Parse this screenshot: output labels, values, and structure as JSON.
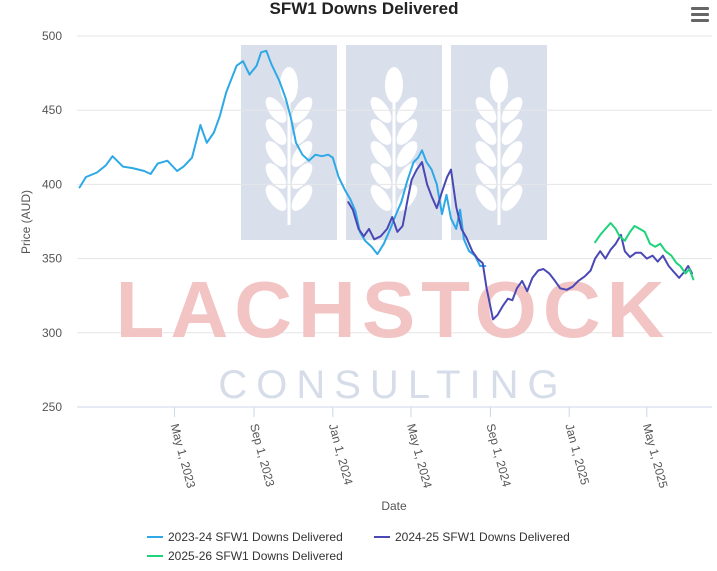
{
  "watermark": {
    "brand_word": "LACHSTOCK",
    "sub_word": "CONSULTING"
  },
  "menu_icon": "hamburger-menu-icon",
  "chart_data": {
    "type": "line",
    "title": "SFW1 Downs Delivered",
    "xlabel": "Date",
    "ylabel": "Price (AUD)",
    "ylim": [
      250,
      500
    ],
    "yticks": [
      "500",
      "450",
      "400",
      "350",
      "300",
      "250"
    ],
    "xlim": [
      "2022-12-01",
      "2025-08-10"
    ],
    "xticks": [
      {
        "date": "2023-05-01",
        "label": "May 1, 2023"
      },
      {
        "date": "2023-09-01",
        "label": "Sep 1, 2023"
      },
      {
        "date": "2024-01-01",
        "label": "Jan 1, 2024"
      },
      {
        "date": "2024-05-01",
        "label": "May 1, 2024"
      },
      {
        "date": "2024-09-01",
        "label": "Sep 1, 2024"
      },
      {
        "date": "2025-01-01",
        "label": "Jan 1, 2025"
      },
      {
        "date": "2025-05-01",
        "label": "May 1, 2025"
      }
    ],
    "grid": true,
    "legend_position": "bottom-center",
    "series": [
      {
        "name": "2023-24 SFW1 Downs Delivered",
        "color": "#2ea8e6",
        "points": [
          [
            "2022-12-05",
            398
          ],
          [
            "2022-12-15",
            405
          ],
          [
            "2023-01-01",
            408
          ],
          [
            "2023-01-15",
            413
          ],
          [
            "2023-01-25",
            419
          ],
          [
            "2023-02-10",
            412
          ],
          [
            "2023-02-25",
            411
          ],
          [
            "2023-03-15",
            409
          ],
          [
            "2023-03-25",
            407
          ],
          [
            "2023-04-05",
            414
          ],
          [
            "2023-04-20",
            416
          ],
          [
            "2023-05-05",
            409
          ],
          [
            "2023-05-15",
            412
          ],
          [
            "2023-05-28",
            418
          ],
          [
            "2023-06-10",
            440
          ],
          [
            "2023-06-20",
            428
          ],
          [
            "2023-07-01",
            435
          ],
          [
            "2023-07-10",
            446
          ],
          [
            "2023-07-20",
            462
          ],
          [
            "2023-07-28",
            471
          ],
          [
            "2023-08-05",
            480
          ],
          [
            "2023-08-15",
            483
          ],
          [
            "2023-08-25",
            474
          ],
          [
            "2023-09-05",
            480
          ],
          [
            "2023-09-12",
            489
          ],
          [
            "2023-09-20",
            490
          ],
          [
            "2023-09-28",
            481
          ],
          [
            "2023-10-10",
            470
          ],
          [
            "2023-10-20",
            458
          ],
          [
            "2023-10-28",
            445
          ],
          [
            "2023-11-05",
            428
          ],
          [
            "2023-11-15",
            420
          ],
          [
            "2023-11-25",
            416
          ],
          [
            "2023-12-05",
            420
          ],
          [
            "2023-12-15",
            419
          ],
          [
            "2023-12-25",
            420
          ],
          [
            "2024-01-01",
            418
          ],
          [
            "2024-01-10",
            405
          ],
          [
            "2024-01-20",
            396
          ],
          [
            "2024-01-28",
            390
          ],
          [
            "2024-02-05",
            382
          ],
          [
            "2024-02-12",
            368
          ],
          [
            "2024-02-20",
            362
          ],
          [
            "2024-03-01",
            358
          ],
          [
            "2024-03-10",
            353
          ],
          [
            "2024-03-20",
            360
          ],
          [
            "2024-03-30",
            370
          ],
          [
            "2024-04-08",
            380
          ],
          [
            "2024-04-16",
            388
          ],
          [
            "2024-04-25",
            402
          ],
          [
            "2024-05-05",
            415
          ],
          [
            "2024-05-12",
            418
          ],
          [
            "2024-05-18",
            423
          ],
          [
            "2024-05-25",
            415
          ],
          [
            "2024-06-02",
            410
          ],
          [
            "2024-06-10",
            400
          ],
          [
            "2024-06-18",
            380
          ],
          [
            "2024-06-25",
            393
          ],
          [
            "2024-07-02",
            377
          ],
          [
            "2024-07-10",
            370
          ],
          [
            "2024-07-16",
            383
          ],
          [
            "2024-07-22",
            363
          ],
          [
            "2024-07-30",
            355
          ],
          [
            "2024-08-08",
            352
          ],
          [
            "2024-08-16",
            345
          ],
          [
            "2024-08-24",
            345
          ]
        ]
      },
      {
        "name": "2024-25 SFW1 Downs Delivered",
        "color": "#4a48b5",
        "points": [
          [
            "2024-01-25",
            388
          ],
          [
            "2024-02-01",
            383
          ],
          [
            "2024-02-10",
            370
          ],
          [
            "2024-02-18",
            365
          ],
          [
            "2024-02-26",
            370
          ],
          [
            "2024-03-05",
            363
          ],
          [
            "2024-03-15",
            365
          ],
          [
            "2024-03-25",
            370
          ],
          [
            "2024-04-02",
            378
          ],
          [
            "2024-04-10",
            368
          ],
          [
            "2024-04-18",
            372
          ],
          [
            "2024-04-26",
            390
          ],
          [
            "2024-05-02",
            403
          ],
          [
            "2024-05-10",
            410
          ],
          [
            "2024-05-18",
            415
          ],
          [
            "2024-05-26",
            400
          ],
          [
            "2024-06-02",
            392
          ],
          [
            "2024-06-10",
            384
          ],
          [
            "2024-06-18",
            395
          ],
          [
            "2024-06-26",
            405
          ],
          [
            "2024-07-02",
            410
          ],
          [
            "2024-07-10",
            385
          ],
          [
            "2024-07-18",
            370
          ],
          [
            "2024-07-26",
            364
          ],
          [
            "2024-08-04",
            355
          ],
          [
            "2024-08-12",
            350
          ],
          [
            "2024-08-20",
            347
          ],
          [
            "2024-08-26",
            330
          ],
          [
            "2024-08-30",
            322
          ],
          [
            "2024-09-05",
            309
          ],
          [
            "2024-09-12",
            312
          ],
          [
            "2024-09-20",
            318
          ],
          [
            "2024-09-28",
            323
          ],
          [
            "2024-10-05",
            322
          ],
          [
            "2024-10-12",
            330
          ],
          [
            "2024-10-20",
            335
          ],
          [
            "2024-10-28",
            328
          ],
          [
            "2024-11-05",
            337
          ],
          [
            "2024-11-14",
            342
          ],
          [
            "2024-11-22",
            343
          ],
          [
            "2024-12-01",
            340
          ],
          [
            "2024-12-10",
            335
          ],
          [
            "2024-12-18",
            330
          ],
          [
            "2024-12-28",
            329
          ],
          [
            "2025-01-06",
            331
          ],
          [
            "2025-01-15",
            335
          ],
          [
            "2025-01-25",
            338
          ],
          [
            "2025-02-03",
            342
          ],
          [
            "2025-02-10",
            350
          ],
          [
            "2025-02-18",
            355
          ],
          [
            "2025-02-26",
            350
          ],
          [
            "2025-03-06",
            356
          ],
          [
            "2025-03-14",
            360
          ],
          [
            "2025-03-22",
            366
          ],
          [
            "2025-03-28",
            355
          ],
          [
            "2025-04-05",
            351
          ],
          [
            "2025-04-14",
            354
          ],
          [
            "2025-04-22",
            354
          ],
          [
            "2025-05-01",
            350
          ],
          [
            "2025-05-10",
            352
          ],
          [
            "2025-05-18",
            348
          ],
          [
            "2025-05-26",
            352
          ],
          [
            "2025-06-04",
            345
          ],
          [
            "2025-06-12",
            341
          ],
          [
            "2025-06-20",
            337
          ],
          [
            "2025-06-28",
            341
          ],
          [
            "2025-07-04",
            345
          ],
          [
            "2025-07-10",
            340
          ]
        ]
      },
      {
        "name": "2025-26 SFW1 Downs Delivered",
        "color": "#1ed37a",
        "points": [
          [
            "2025-02-10",
            361
          ],
          [
            "2025-02-18",
            366
          ],
          [
            "2025-02-26",
            370
          ],
          [
            "2025-03-06",
            374
          ],
          [
            "2025-03-14",
            370
          ],
          [
            "2025-03-20",
            365
          ],
          [
            "2025-03-28",
            362
          ],
          [
            "2025-04-05",
            368
          ],
          [
            "2025-04-12",
            372
          ],
          [
            "2025-04-20",
            370
          ],
          [
            "2025-04-28",
            368
          ],
          [
            "2025-05-06",
            360
          ],
          [
            "2025-05-14",
            358
          ],
          [
            "2025-05-22",
            360
          ],
          [
            "2025-05-30",
            355
          ],
          [
            "2025-06-08",
            352
          ],
          [
            "2025-06-16",
            347
          ],
          [
            "2025-06-22",
            345
          ],
          [
            "2025-06-30",
            340
          ],
          [
            "2025-07-06",
            343
          ],
          [
            "2025-07-12",
            336
          ]
        ]
      }
    ]
  }
}
